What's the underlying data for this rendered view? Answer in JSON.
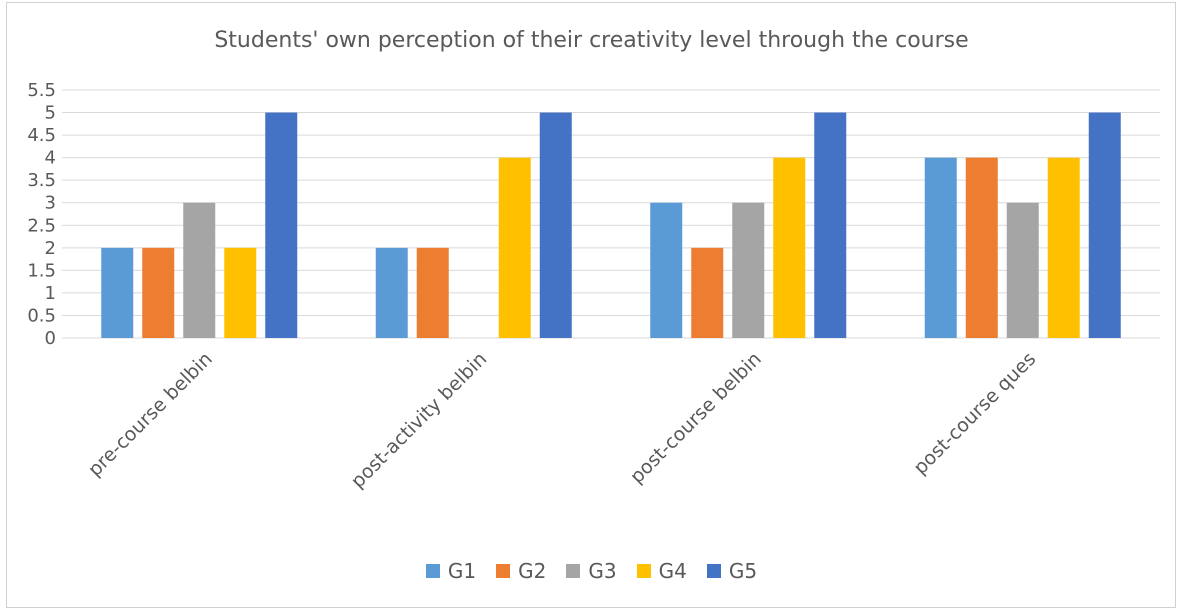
{
  "chart_data": {
    "type": "bar",
    "title": "Students' own perception of their creativity level through the course",
    "categories": [
      "pre-course belbin",
      "post-activity belbin",
      "post-course belbin",
      "post-course ques"
    ],
    "series": [
      {
        "name": "G1",
        "color": "#5B9BD5",
        "values": [
          2,
          2,
          3,
          4
        ]
      },
      {
        "name": "G2",
        "color": "#ED7D31",
        "values": [
          2,
          2,
          2,
          4
        ]
      },
      {
        "name": "G3",
        "color": "#A5A5A5",
        "values": [
          3,
          0,
          3,
          3
        ]
      },
      {
        "name": "G4",
        "color": "#FFC000",
        "values": [
          2,
          4,
          4,
          4
        ]
      },
      {
        "name": "G5",
        "color": "#4472C4",
        "values": [
          5,
          5,
          5,
          5
        ]
      }
    ],
    "ylim": [
      0,
      5.5
    ],
    "yticks": [
      "0",
      "0.5",
      "1",
      "1.5",
      "2",
      "2.5",
      "3",
      "3.5",
      "4",
      "4.5",
      "5",
      "5.5"
    ],
    "grid": true,
    "legend_position": "bottom"
  }
}
